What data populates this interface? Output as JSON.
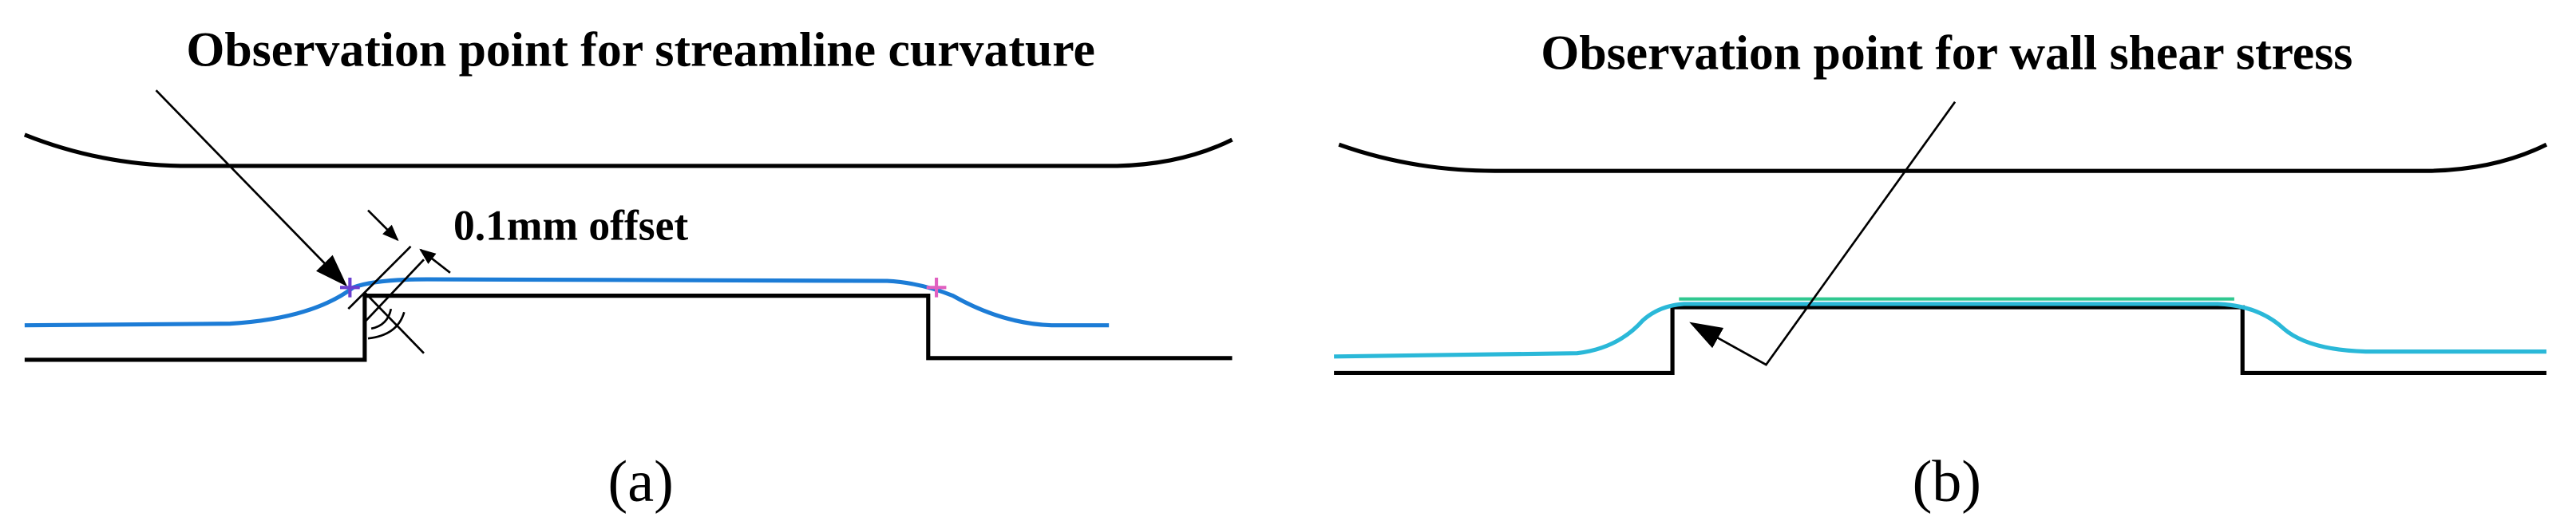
{
  "panels": [
    {
      "title": "Observation point for streamline curvature",
      "offset_label": "0.1mm offset",
      "caption": "(a)"
    },
    {
      "title": "Observation point for wall shear stress",
      "caption": "(b)"
    }
  ]
}
